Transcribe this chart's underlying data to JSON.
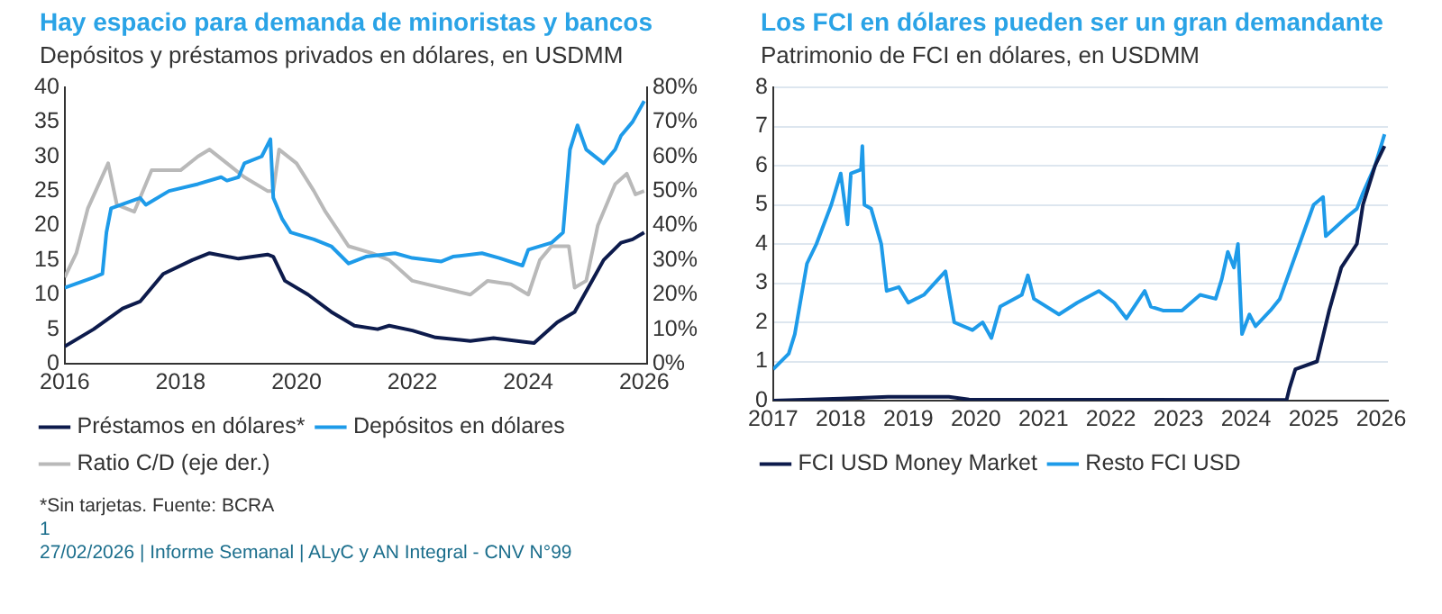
{
  "chart_data": [
    {
      "type": "line",
      "title": "Hay espacio para demanda de minoristas y bancos",
      "subtitle": "Depósitos y préstamos privados en dólares, en USDMM",
      "xlim": [
        2016,
        2026.05
      ],
      "xticks": [
        2016,
        2018,
        2020,
        2022,
        2024,
        2026
      ],
      "ylim": [
        0,
        40
      ],
      "yticks": [
        0,
        5,
        10,
        15,
        20,
        25,
        30,
        35,
        40
      ],
      "y2lim": [
        0,
        80
      ],
      "y2ticks": [
        {
          "value": 0,
          "label": "0%"
        },
        {
          "value": 10,
          "label": "10%"
        },
        {
          "value": 20,
          "label": "20%"
        },
        {
          "value": 30,
          "label": "30%"
        },
        {
          "value": 40,
          "label": "40%"
        },
        {
          "value": 50,
          "label": "50%"
        },
        {
          "value": 60,
          "label": "60%"
        },
        {
          "value": 70,
          "label": "70%"
        },
        {
          "value": 80,
          "label": "80%"
        }
      ],
      "grid": false,
      "legend": "bottom",
      "marker": "none",
      "line_style": "solid",
      "series": [
        {
          "name": "Préstamos en dólares*",
          "color": "#0d1b4c",
          "x": [
            2016,
            2016.5,
            2017,
            2017.3,
            2017.7,
            2018.2,
            2018.5,
            2019,
            2019.5,
            2019.6,
            2019.8,
            2020.2,
            2020.6,
            2021,
            2021.4,
            2021.6,
            2022,
            2022.4,
            2023,
            2023.4,
            2023.9,
            2024.1,
            2024.3,
            2024.5,
            2024.8,
            2025.1,
            2025.3,
            2025.6,
            2025.8,
            2026
          ],
          "values": [
            2.5,
            5,
            8,
            9,
            13,
            15,
            16,
            15.2,
            15.8,
            15.5,
            12,
            10,
            7.5,
            5.5,
            5,
            5.5,
            4.8,
            3.8,
            3.3,
            3.7,
            3.2,
            3,
            4.5,
            6,
            7.5,
            12,
            15,
            17.5,
            18,
            19
          ]
        },
        {
          "name": "Depósitos en dólares",
          "color": "#1e9be9",
          "x": [
            2016,
            2016.5,
            2016.65,
            2016.72,
            2016.8,
            2017.3,
            2017.4,
            2017.8,
            2018.3,
            2018.7,
            2018.8,
            2019,
            2019.1,
            2019.4,
            2019.55,
            2019.6,
            2019.75,
            2019.9,
            2020.3,
            2020.6,
            2020.9,
            2021.2,
            2021.7,
            2022,
            2022.5,
            2022.7,
            2023.2,
            2023.5,
            2023.9,
            2024,
            2024.4,
            2024.6,
            2024.72,
            2024.85,
            2025,
            2025.3,
            2025.5,
            2025.6,
            2025.8,
            2026
          ],
          "values": [
            11,
            12.5,
            13,
            19,
            22.5,
            24,
            23,
            25,
            26,
            27,
            26.5,
            27,
            29,
            30,
            32.5,
            24,
            21,
            19,
            18,
            17,
            14.5,
            15.5,
            16,
            15.3,
            14.8,
            15.5,
            16,
            15.3,
            14.2,
            16.5,
            17.5,
            19,
            31,
            34.5,
            31,
            29,
            31,
            33,
            35,
            38
          ]
        },
        {
          "name": "Ratio C/D (eje der.)",
          "color": "#b9b9b9",
          "axis": "y2",
          "x": [
            2016,
            2016.2,
            2016.4,
            2016.75,
            2016.9,
            2017.2,
            2017.5,
            2018,
            2018.3,
            2018.5,
            2018.8,
            2019.1,
            2019.5,
            2019.6,
            2019.7,
            2020,
            2020.3,
            2020.5,
            2020.9,
            2021.3,
            2021.6,
            2022,
            2022.5,
            2023,
            2023.3,
            2023.7,
            2024,
            2024.2,
            2024.4,
            2024.7,
            2024.8,
            2025,
            2025.2,
            2025.5,
            2025.7,
            2025.85,
            2026
          ],
          "values": [
            25,
            32,
            45,
            58,
            46,
            44,
            56,
            56,
            60,
            62,
            58,
            54,
            50,
            50,
            62,
            58,
            50,
            44,
            34,
            32,
            30,
            24,
            22,
            20,
            24,
            23,
            20,
            30,
            34,
            34,
            22,
            24,
            40,
            52,
            55,
            49,
            50
          ]
        }
      ],
      "annotations": [
        "*Sin tarjetas. Fuente: BCRA",
        "1",
        "27/02/2026  |  Informe Semanal  |  ALyC y AN Integral - CNV N°99"
      ]
    },
    {
      "type": "line",
      "title": "Los FCI en dólares pueden ser un gran demandante",
      "subtitle": "Patrimonio de FCI en dólares, en USDMM",
      "xlim": [
        2017,
        2026.1
      ],
      "xticks": [
        2017,
        2018,
        2019,
        2020,
        2021,
        2022,
        2023,
        2024,
        2025,
        2026
      ],
      "ylim": [
        0,
        8
      ],
      "yticks": [
        0,
        1,
        2,
        3,
        4,
        5,
        6,
        7,
        8
      ],
      "grid": "y",
      "legend": "bottom",
      "marker": "none",
      "line_style": "solid",
      "series": [
        {
          "name": "FCI USD Money Market",
          "color": "#0d1b4c",
          "x": [
            2017,
            2018,
            2018.7,
            2019.6,
            2019.9,
            2024.6,
            2024.64,
            2024.73,
            2025.05,
            2025.23,
            2025.41,
            2025.64,
            2025.73,
            2025.91,
            2026.05
          ],
          "values": [
            0,
            0.05,
            0.1,
            0.1,
            0.03,
            0.02,
            0.3,
            0.8,
            1,
            2.3,
            3.4,
            4,
            5,
            6,
            6.5
          ]
        },
        {
          "name": "Resto FCI USD",
          "color": "#1e9be9",
          "x": [
            2017,
            2017.23,
            2017.32,
            2017.5,
            2017.64,
            2017.86,
            2018,
            2018.1,
            2018.15,
            2018.3,
            2018.32,
            2018.35,
            2018.45,
            2018.6,
            2018.68,
            2018.86,
            2019,
            2019.23,
            2019.55,
            2019.68,
            2019.95,
            2020.1,
            2020.23,
            2020.36,
            2020.68,
            2020.77,
            2020.86,
            2021.23,
            2021.5,
            2021.82,
            2022.05,
            2022.23,
            2022.5,
            2022.59,
            2022.77,
            2023.05,
            2023.32,
            2023.55,
            2023.64,
            2023.73,
            2023.82,
            2023.88,
            2023.94,
            2024.05,
            2024.14,
            2024.36,
            2024.5,
            2024.77,
            2025,
            2025.14,
            2025.18,
            2025.5,
            2025.64,
            2025.73,
            2025.91,
            2026.05
          ],
          "values": [
            0.8,
            1.2,
            1.7,
            3.5,
            4,
            5,
            5.8,
            4.5,
            5.8,
            5.9,
            6.5,
            5,
            4.9,
            4,
            2.8,
            2.9,
            2.5,
            2.7,
            3.3,
            2,
            1.8,
            2,
            1.6,
            2.4,
            2.7,
            3.2,
            2.6,
            2.2,
            2.5,
            2.8,
            2.5,
            2.1,
            2.8,
            2.4,
            2.3,
            2.3,
            2.7,
            2.6,
            3.1,
            3.8,
            3.4,
            4,
            1.7,
            2.2,
            1.9,
            2.3,
            2.6,
            3.9,
            5,
            5.2,
            4.2,
            4.7,
            4.9,
            5.3,
            6,
            6.8
          ]
        }
      ]
    }
  ]
}
